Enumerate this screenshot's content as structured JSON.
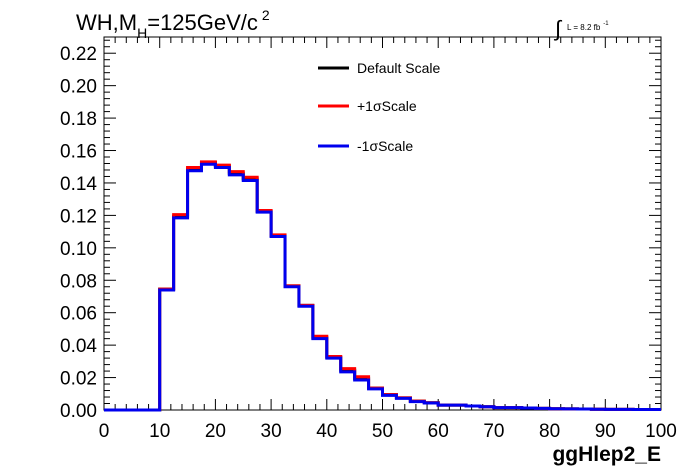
{
  "chart_data": {
    "type": "line",
    "title_main": "WH,M",
    "title_sub": "H",
    "title_rest": "=125GeV/c",
    "title_sup": "2",
    "lumi_label": "L = 8.2 fb",
    "lumi_sup": "-1",
    "lumi_integral": "∫",
    "xlabel": "ggHlep2_E",
    "xlim": [
      0,
      100
    ],
    "ylim": [
      0,
      0.23
    ],
    "xticks": [
      0,
      10,
      20,
      30,
      40,
      50,
      60,
      70,
      80,
      90,
      100
    ],
    "xtick_labels": [
      "0",
      "10",
      "20",
      "30",
      "40",
      "50",
      "60",
      "70",
      "80",
      "90",
      "100"
    ],
    "yticks": [
      0,
      0.02,
      0.04,
      0.06,
      0.08,
      0.1,
      0.12,
      0.14,
      0.16,
      0.18,
      0.2,
      0.22
    ],
    "ytick_labels": [
      "0.00",
      "0.02",
      "0.04",
      "0.06",
      "0.08",
      "0.10",
      "0.12",
      "0.14",
      "0.16",
      "0.18",
      "0.20",
      "0.22"
    ],
    "bin_edges": [
      0,
      2.5,
      5,
      7.5,
      10,
      12.5,
      15,
      17.5,
      20,
      22.5,
      25,
      27.5,
      30,
      32.5,
      35,
      37.5,
      40,
      42.5,
      45,
      47.5,
      50,
      52.5,
      55,
      57.5,
      60,
      62.5,
      65,
      67.5,
      70,
      72.5,
      75,
      77.5,
      80,
      82.5,
      85,
      87.5,
      90,
      92.5,
      95,
      97.5,
      100
    ],
    "legend_position": "top-right",
    "series": [
      {
        "name": "Default Scale",
        "color": "#000000",
        "values": [
          0,
          0,
          0,
          0,
          0.0745,
          0.1195,
          0.1485,
          0.1525,
          0.1505,
          0.146,
          0.1425,
          0.1225,
          0.1075,
          0.0765,
          0.0645,
          0.0445,
          0.0325,
          0.0245,
          0.0195,
          0.0135,
          0.0095,
          0.0075,
          0.0055,
          0.0045,
          0.003,
          0.003,
          0.0025,
          0.002,
          0.0015,
          0.0015,
          0.0012,
          0.001,
          0.0008,
          0.0007,
          0.0006,
          0.0005,
          0.0004,
          0.0004,
          0.0003,
          0.0003
        ]
      },
      {
        "name": "+1σScale",
        "color": "#ff0000",
        "values": [
          0,
          0,
          0,
          0,
          0.0745,
          0.1205,
          0.1495,
          0.153,
          0.151,
          0.147,
          0.1435,
          0.123,
          0.108,
          0.0765,
          0.0645,
          0.0455,
          0.033,
          0.0255,
          0.0205,
          0.0135,
          0.0095,
          0.0075,
          0.0055,
          0.0045,
          0.003,
          0.003,
          0.0025,
          0.002,
          0.0015,
          0.0015,
          0.0012,
          0.001,
          0.0008,
          0.0007,
          0.0006,
          0.0005,
          0.0004,
          0.0004,
          0.0003,
          0.0003
        ]
      },
      {
        "name": "-1σScale",
        "color": "#0000ee",
        "values": [
          0,
          0,
          0,
          0,
          0.074,
          0.1185,
          0.1475,
          0.1515,
          0.1495,
          0.145,
          0.1415,
          0.122,
          0.107,
          0.076,
          0.064,
          0.044,
          0.032,
          0.0235,
          0.0185,
          0.013,
          0.009,
          0.0072,
          0.0052,
          0.0043,
          0.003,
          0.003,
          0.0025,
          0.002,
          0.0015,
          0.0015,
          0.0012,
          0.001,
          0.0008,
          0.0007,
          0.0006,
          0.0005,
          0.0004,
          0.0004,
          0.0003,
          0.0003
        ]
      }
    ]
  }
}
